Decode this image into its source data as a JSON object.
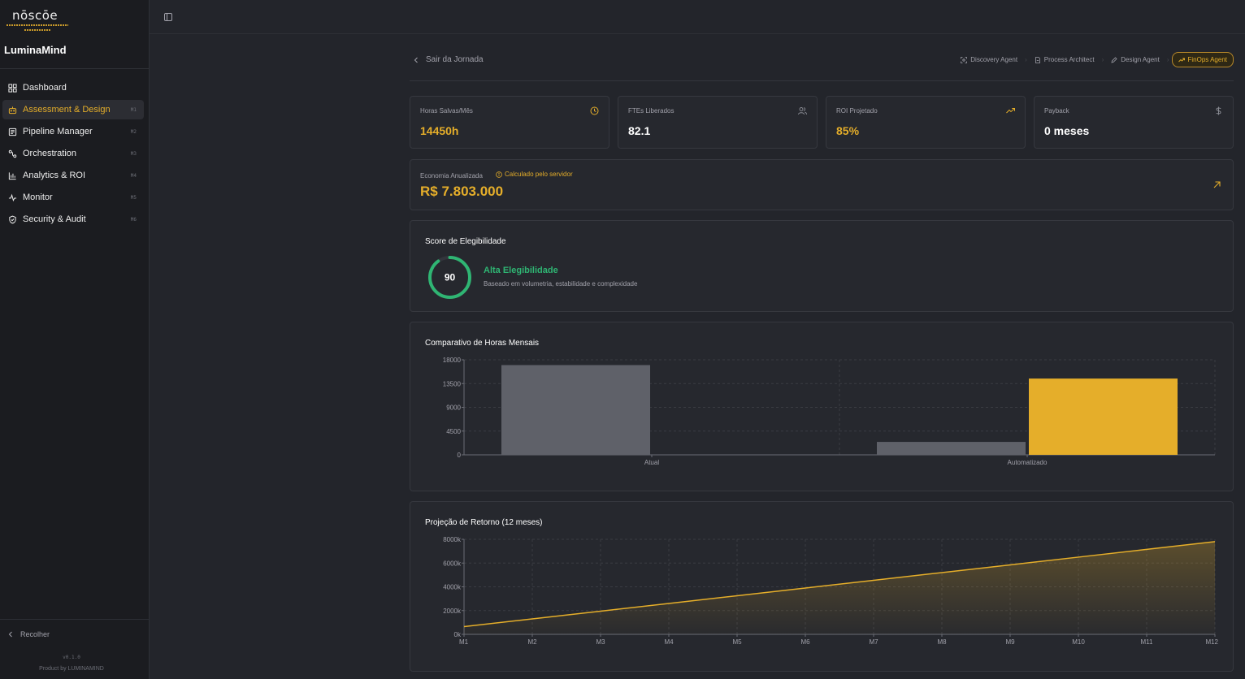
{
  "sidebar": {
    "logo_text": "nōscōe",
    "brand": "LuminaMind",
    "items": [
      {
        "label": "Dashboard",
        "kbd": "",
        "icon": "grid-icon"
      },
      {
        "label": "Assessment & Design",
        "kbd": "M1",
        "icon": "robot-icon"
      },
      {
        "label": "Pipeline Manager",
        "kbd": "M2",
        "icon": "board-icon"
      },
      {
        "label": "Orchestration",
        "kbd": "M3",
        "icon": "route-icon"
      },
      {
        "label": "Analytics & ROI",
        "kbd": "M4",
        "icon": "bar-chart-icon"
      },
      {
        "label": "Monitor",
        "kbd": "M5",
        "icon": "activity-icon"
      },
      {
        "label": "Security & Audit",
        "kbd": "M6",
        "icon": "shield-icon"
      }
    ],
    "active_index": 1,
    "collapse_label": "Recolher",
    "version": "v0.1.0",
    "product": "Product by LUMINAMIND"
  },
  "journey": {
    "back_label": "Sair da Jornada",
    "agents": [
      {
        "label": "Discovery Agent",
        "icon": "scan-icon"
      },
      {
        "label": "Process Architect",
        "icon": "file-icon"
      },
      {
        "label": "Design Agent",
        "icon": "pen-icon"
      },
      {
        "label": "FinOps Agent",
        "icon": "trending-up-icon"
      }
    ]
  },
  "kpis": [
    {
      "label": "Horas Salvas/Mês",
      "value": "14450h",
      "icon": "clock-icon",
      "gold": true
    },
    {
      "label": "FTEs Liberados",
      "value": "82.1",
      "icon": "users-icon",
      "gold": false
    },
    {
      "label": "ROI Projetado",
      "value": "85%",
      "icon": "trending-up-icon",
      "gold": true
    },
    {
      "label": "Payback",
      "value": "0 meses",
      "icon": "dollar-icon",
      "gold": false
    }
  ],
  "economy": {
    "label": "Economia Anualizada",
    "note": "Calculado pelo servidor",
    "value": "R$ 7.803.000"
  },
  "score": {
    "title": "Score de Elegibilidade",
    "value": 90,
    "level": "Alta Elegibilidade",
    "description": "Baseado em volumetria, estabilidade e complexidade",
    "color": "#2fb573"
  },
  "colors": {
    "accent": "#e5ae2a",
    "gray_bar": "#5f6169",
    "success": "#2fb573"
  },
  "chart_data": [
    {
      "type": "bar",
      "title": "Comparativo de Horas Mensais",
      "categories": [
        "Atual",
        "Automatizado"
      ],
      "series": [
        {
          "values": [
            17000,
            2450
          ],
          "color": "#5f6169"
        },
        {
          "values": [
            0,
            14450
          ],
          "color": "#e5ae2a"
        }
      ],
      "yticks": [
        "0",
        "4500",
        "9000",
        "13500",
        "18000"
      ],
      "ylim": [
        0,
        18000
      ],
      "grid": true
    },
    {
      "type": "area",
      "title": "Projeção de Retorno (12 meses)",
      "x": [
        "M1",
        "M2",
        "M3",
        "M4",
        "M5",
        "M6",
        "M7",
        "M8",
        "M9",
        "M10",
        "M11",
        "M12"
      ],
      "series": [
        {
          "values": [
            650000,
            1300000,
            1950000,
            2600000,
            3250000,
            3900000,
            4550000,
            5200000,
            5850000,
            6500000,
            7150000,
            7803000
          ],
          "color": "#e5ae2a"
        }
      ],
      "yticks": [
        "0k",
        "2000k",
        "4000k",
        "6000k",
        "8000k"
      ],
      "ylim": [
        0,
        8000000
      ],
      "grid": true
    }
  ]
}
